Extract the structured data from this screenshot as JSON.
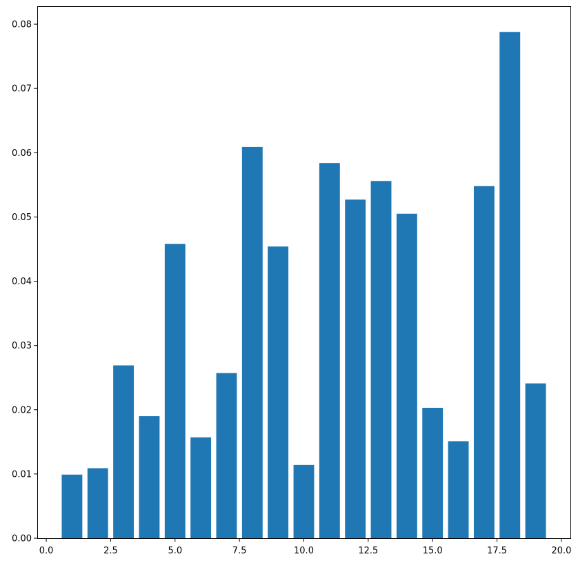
{
  "chart_data": {
    "type": "bar",
    "title": "",
    "xlabel": "",
    "ylabel": "",
    "x": [
      1,
      2,
      3,
      4,
      5,
      6,
      7,
      8,
      9,
      10,
      11,
      12,
      13,
      14,
      15,
      16,
      17,
      18,
      19
    ],
    "values": [
      0.0099,
      0.0109,
      0.0269,
      0.019,
      0.0458,
      0.0157,
      0.0257,
      0.0609,
      0.0454,
      0.0114,
      0.0584,
      0.0527,
      0.0556,
      0.0505,
      0.0203,
      0.0151,
      0.0548,
      0.0788,
      0.0241
    ],
    "bar_width": 0.8,
    "xlim": [
      -0.35,
      20.35
    ],
    "ylim": [
      0,
      0.0828
    ],
    "xticks": [
      {
        "value": 0.0,
        "label": "0.0"
      },
      {
        "value": 2.5,
        "label": "2.5"
      },
      {
        "value": 5.0,
        "label": "5.0"
      },
      {
        "value": 7.5,
        "label": "7.5"
      },
      {
        "value": 10.0,
        "label": "10.0"
      },
      {
        "value": 12.5,
        "label": "12.5"
      },
      {
        "value": 15.0,
        "label": "15.0"
      },
      {
        "value": 17.5,
        "label": "17.5"
      },
      {
        "value": 20.0,
        "label": "20.0"
      }
    ],
    "yticks": [
      {
        "value": 0.0,
        "label": "0.00"
      },
      {
        "value": 0.01,
        "label": "0.01"
      },
      {
        "value": 0.02,
        "label": "0.02"
      },
      {
        "value": 0.03,
        "label": "0.03"
      },
      {
        "value": 0.04,
        "label": "0.04"
      },
      {
        "value": 0.05,
        "label": "0.05"
      },
      {
        "value": 0.06,
        "label": "0.06"
      },
      {
        "value": 0.07,
        "label": "0.07"
      },
      {
        "value": 0.08,
        "label": "0.08"
      }
    ],
    "grid": false,
    "bar_color": "#1f77b4"
  }
}
